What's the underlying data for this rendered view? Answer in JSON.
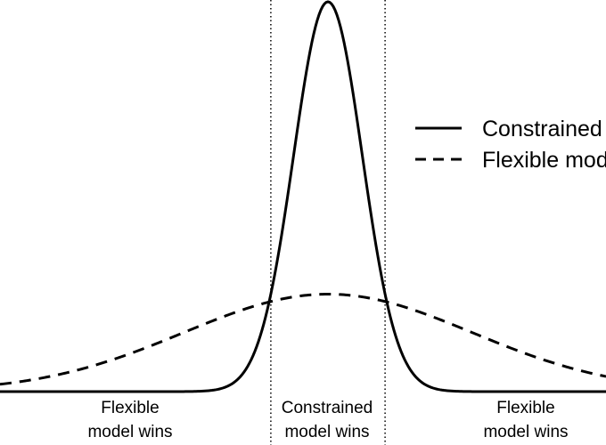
{
  "colors": {
    "background": "#ffffff",
    "ink": "#000000"
  },
  "legend": {
    "items": [
      {
        "label": "Constrained model",
        "line_style": "solid"
      },
      {
        "label": "Flexible model",
        "line_style": "dashed"
      }
    ]
  },
  "regions": {
    "left": {
      "line1": "Flexible",
      "line2": "model wins"
    },
    "center": {
      "line1": "Constrained",
      "line2": "model wins"
    },
    "right": {
      "line1": "Flexible",
      "line2": "model wins"
    }
  },
  "curves": [
    {
      "name": "constrained",
      "style": "solid",
      "mean": 0,
      "sd": 1.0,
      "peak": 1.0
    },
    {
      "name": "flexible",
      "style": "dashed",
      "mean": 0,
      "sd": 4.2,
      "peak": 0.25
    }
  ],
  "thresholds": [
    -1.665,
    1.665
  ]
}
